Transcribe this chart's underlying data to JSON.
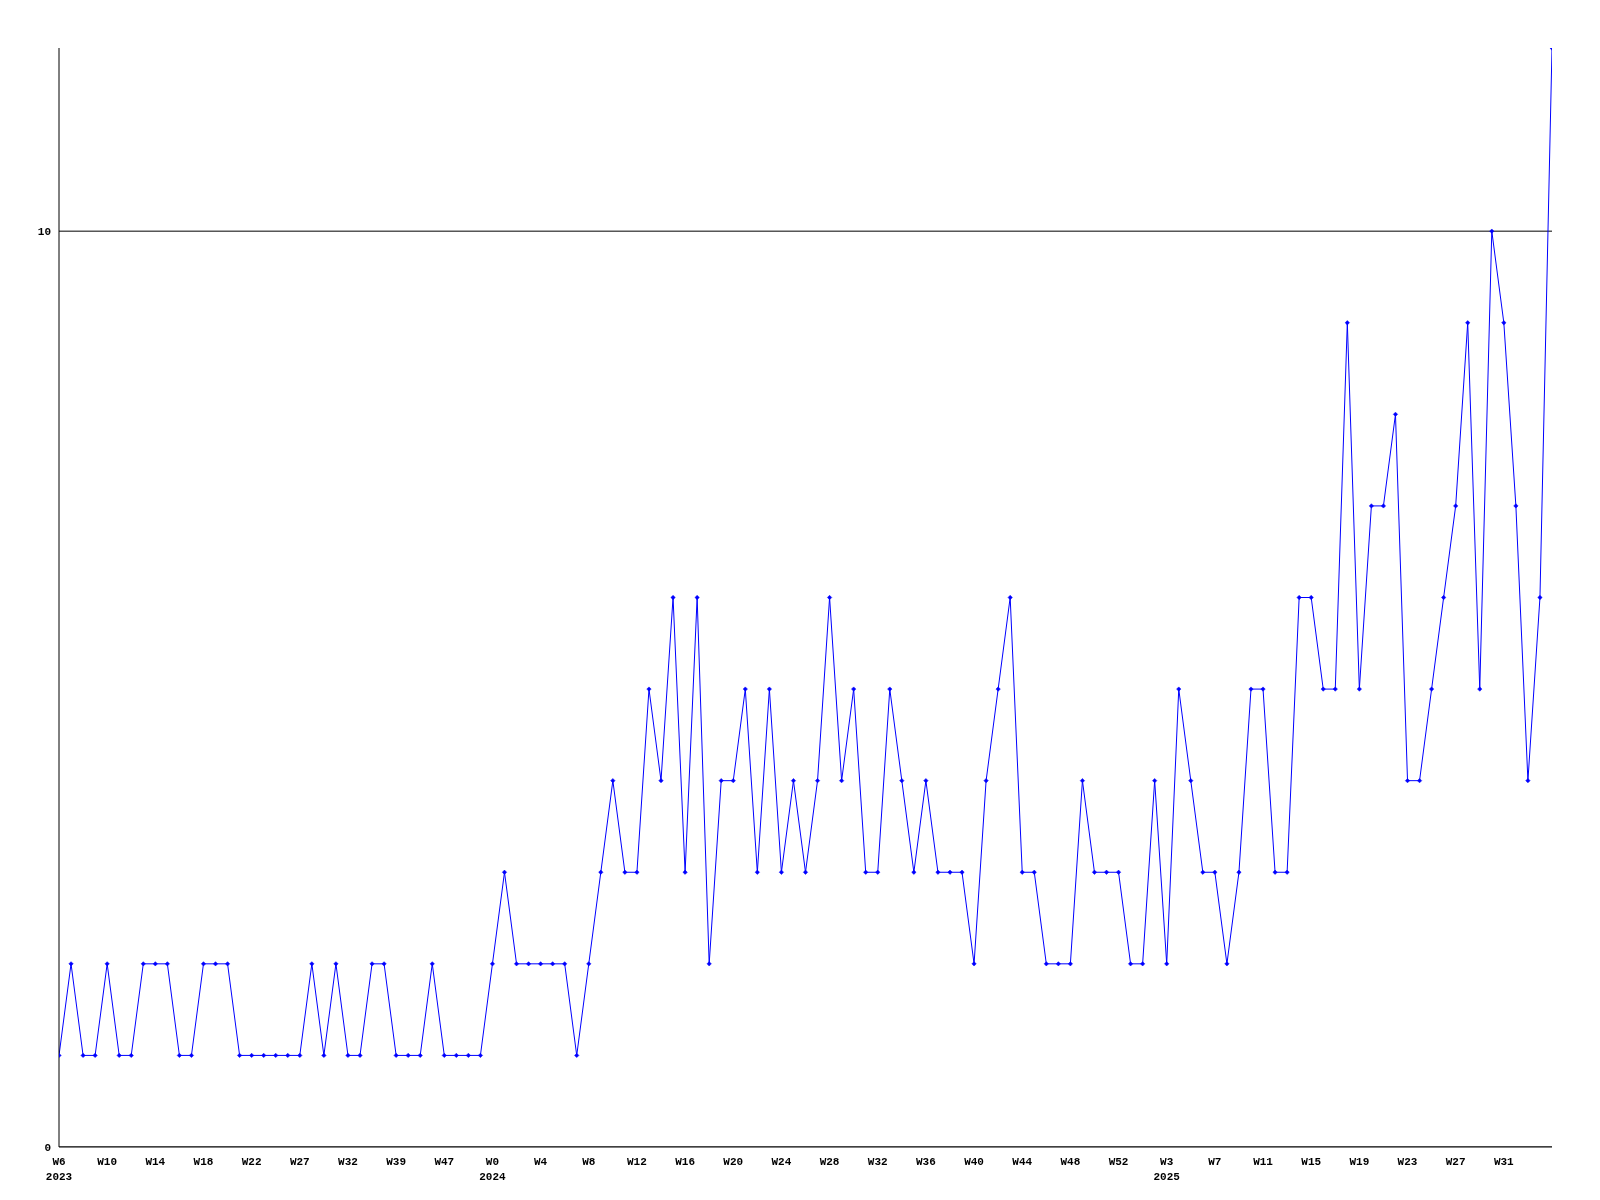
{
  "chart_data": {
    "type": "line",
    "categories": [
      "W6\n2023",
      null,
      null,
      null,
      "W10",
      null,
      null,
      null,
      "W14",
      null,
      null,
      null,
      "W18",
      null,
      null,
      null,
      "W22",
      null,
      null,
      null,
      "W27",
      null,
      null,
      null,
      "W32",
      null,
      null,
      null,
      "W39",
      null,
      null,
      null,
      "W47",
      null,
      null,
      null,
      "W0\n2024",
      null,
      null,
      null,
      "W4",
      null,
      null,
      null,
      "W8",
      null,
      null,
      null,
      "W12",
      null,
      null,
      null,
      "W16",
      null,
      null,
      null,
      "W20",
      null,
      null,
      null,
      "W24",
      null,
      null,
      null,
      "W28",
      null,
      null,
      null,
      "W32",
      null,
      null,
      null,
      "W36",
      null,
      null,
      null,
      "W40",
      null,
      null,
      null,
      "W44",
      null,
      null,
      null,
      "W48",
      null,
      null,
      null,
      "W52",
      null,
      null,
      null,
      "W3\n2025",
      null,
      null,
      null,
      "W7",
      null,
      null,
      null,
      "W11",
      null,
      null,
      null,
      "W15",
      null,
      null,
      null,
      "W19",
      null,
      null,
      null,
      "W23",
      null,
      null,
      null,
      "W27",
      null,
      null,
      null,
      "W31",
      null,
      null,
      null,
      null
    ],
    "series": [
      {
        "color": "#0000ff",
        "values": [
          1,
          2,
          1,
          1,
          2,
          1,
          1,
          2,
          2,
          2,
          1,
          1,
          2,
          2,
          2,
          1,
          1,
          1,
          1,
          1,
          1,
          2,
          1,
          2,
          1,
          1,
          2,
          2,
          1,
          1,
          1,
          2,
          1,
          1,
          1,
          1,
          2,
          3,
          2,
          2,
          2,
          2,
          2,
          1,
          2,
          3,
          4,
          3,
          3,
          5,
          4,
          6,
          3,
          6,
          2,
          4,
          4,
          5,
          3,
          5,
          3,
          4,
          3,
          4,
          6,
          4,
          5,
          3,
          3,
          5,
          4,
          3,
          4,
          3,
          3,
          3,
          2,
          4,
          5,
          6,
          3,
          3,
          2,
          2,
          2,
          4,
          3,
          3,
          3,
          2,
          2,
          4,
          2,
          5,
          4,
          3,
          3,
          2,
          3,
          5,
          5,
          3,
          3,
          6,
          6,
          5,
          5,
          9,
          5,
          7,
          7,
          8,
          4,
          4,
          5,
          6,
          7,
          9,
          5,
          10,
          9,
          7,
          4,
          6,
          12
        ]
      }
    ],
    "ylim": [
      0,
      12
    ],
    "yticks": [
      0,
      10
    ],
    "grid": "y",
    "marker": "diamond",
    "line_style": "solid"
  }
}
